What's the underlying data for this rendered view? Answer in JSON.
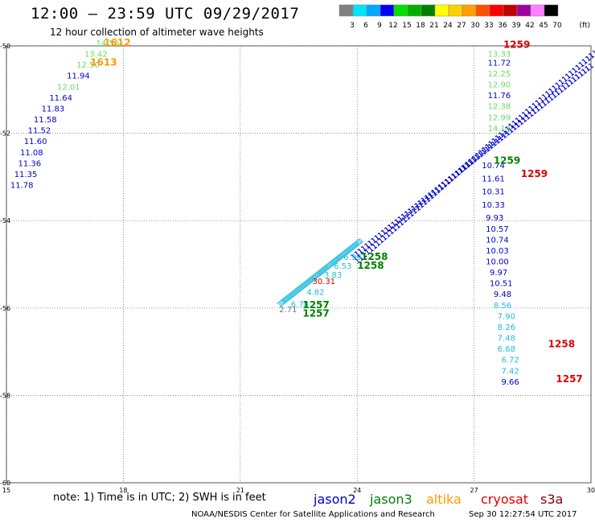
{
  "header": {
    "title": "12:00 – 23:59 UTC 09/29/2017",
    "subtitle": "12 hour collection of altimeter wave heights"
  },
  "colorbar": {
    "unit": "(ft)",
    "ticks": [
      "3",
      "6",
      "9",
      "12",
      "15",
      "18",
      "21",
      "24",
      "27",
      "30",
      "33",
      "36",
      "39",
      "42",
      "45",
      "70"
    ],
    "colors": [
      "#808080",
      "#00e5ff",
      "#00a8ff",
      "#0000ff",
      "#00e000",
      "#00b000",
      "#008000",
      "#ffff00",
      "#ffd000",
      "#ffa000",
      "#ff5000",
      "#ff0000",
      "#c00000",
      "#a000a0",
      "#ff80ff",
      "#000000"
    ]
  },
  "footer": {
    "note": "note: 1) Time is in UTC; 2) SWH is in feet",
    "credit": "NOAA/NESDIS Center for Satellite Applications and Research",
    "stamp": "Sep 30 12:27:54 UTC 2017"
  },
  "legend": [
    {
      "name": "jason2",
      "color": "#0000cc"
    },
    {
      "name": "jason3",
      "color": "#008000"
    },
    {
      "name": "altika",
      "color": "#ff9900"
    },
    {
      "name": "cryosat",
      "color": "#dd0000"
    },
    {
      "name": "s3a",
      "color": "#880000"
    }
  ],
  "chart_data": {
    "type": "scatter",
    "title": "12:00 – 23:59 UTC 09/29/2017",
    "xlim": [
      15,
      30
    ],
    "ylim": [
      -60,
      -50
    ],
    "x_ticks": [
      15,
      18,
      21,
      24,
      27,
      30
    ],
    "y_ticks": [
      -50,
      -52,
      -54,
      -56,
      -58,
      -60
    ],
    "grid": true,
    "value_labels": [
      {
        "x": 17.3,
        "y": -50.0,
        "text": "14.50",
        "color": "#66dd66"
      },
      {
        "x": 17.0,
        "y": -50.25,
        "text": "13.42",
        "color": "#66dd66"
      },
      {
        "x": 16.8,
        "y": -50.5,
        "text": "12.50",
        "color": "#66dd66"
      },
      {
        "x": 16.55,
        "y": -50.75,
        "text": "11.94",
        "color": "#0000cc"
      },
      {
        "x": 16.3,
        "y": -51.0,
        "text": "12.01",
        "color": "#66dd66"
      },
      {
        "x": 16.1,
        "y": -51.25,
        "text": "11.64",
        "color": "#0000cc"
      },
      {
        "x": 15.9,
        "y": -51.5,
        "text": "11.83",
        "color": "#0000cc"
      },
      {
        "x": 15.7,
        "y": -51.75,
        "text": "11.58",
        "color": "#0000cc"
      },
      {
        "x": 15.55,
        "y": -52.0,
        "text": "11.52",
        "color": "#0000cc"
      },
      {
        "x": 15.45,
        "y": -52.25,
        "text": "11.60",
        "color": "#0000cc"
      },
      {
        "x": 15.35,
        "y": -52.5,
        "text": "11.08",
        "color": "#0000cc"
      },
      {
        "x": 15.3,
        "y": -52.75,
        "text": "11.36",
        "color": "#0000cc"
      },
      {
        "x": 15.2,
        "y": -53.0,
        "text": "11.35",
        "color": "#0000cc"
      },
      {
        "x": 15.1,
        "y": -53.25,
        "text": "11.78",
        "color": "#0000cc"
      },
      {
        "x": 27.35,
        "y": -50.25,
        "text": "13.33",
        "color": "#66dd66"
      },
      {
        "x": 27.35,
        "y": -50.45,
        "text": "11.72",
        "color": "#0000cc"
      },
      {
        "x": 27.35,
        "y": -50.7,
        "text": "12.25",
        "color": "#66dd66"
      },
      {
        "x": 27.35,
        "y": -50.95,
        "text": "12.90",
        "color": "#66dd66"
      },
      {
        "x": 27.35,
        "y": -51.2,
        "text": "11.76",
        "color": "#0000cc"
      },
      {
        "x": 27.35,
        "y": -51.45,
        "text": "12.38",
        "color": "#66dd66"
      },
      {
        "x": 27.35,
        "y": -51.7,
        "text": "12.99",
        "color": "#66dd66"
      },
      {
        "x": 27.35,
        "y": -51.95,
        "text": "14.14",
        "color": "#66dd66"
      },
      {
        "x": 27.2,
        "y": -52.8,
        "text": "10.74",
        "color": "#0000cc"
      },
      {
        "x": 27.2,
        "y": -53.1,
        "text": "11.61",
        "color": "#0000cc"
      },
      {
        "x": 27.2,
        "y": -53.4,
        "text": "10.31",
        "color": "#0000cc"
      },
      {
        "x": 27.2,
        "y": -53.7,
        "text": "10.33",
        "color": "#0000cc"
      },
      {
        "x": 27.3,
        "y": -54.0,
        "text": "9.93",
        "color": "#0000cc"
      },
      {
        "x": 27.3,
        "y": -54.25,
        "text": "10.57",
        "color": "#0000cc"
      },
      {
        "x": 27.3,
        "y": -54.5,
        "text": "10.74",
        "color": "#0000cc"
      },
      {
        "x": 27.3,
        "y": -54.75,
        "text": "10.03",
        "color": "#0000cc"
      },
      {
        "x": 27.3,
        "y": -55.0,
        "text": "10.00",
        "color": "#0000cc"
      },
      {
        "x": 27.4,
        "y": -55.25,
        "text": "9.97",
        "color": "#0000cc"
      },
      {
        "x": 27.4,
        "y": -55.5,
        "text": "10.51",
        "color": "#0000cc"
      },
      {
        "x": 27.5,
        "y": -55.75,
        "text": "9.48",
        "color": "#0000cc"
      },
      {
        "x": 27.5,
        "y": -56.0,
        "text": "8.56",
        "color": "#22bbdd"
      },
      {
        "x": 27.6,
        "y": -56.25,
        "text": "7.90",
        "color": "#22bbdd"
      },
      {
        "x": 27.6,
        "y": -56.5,
        "text": "8.26",
        "color": "#22bbdd"
      },
      {
        "x": 27.6,
        "y": -56.75,
        "text": "7.48",
        "color": "#22bbdd"
      },
      {
        "x": 27.6,
        "y": -57.0,
        "text": "6.68",
        "color": "#22bbdd"
      },
      {
        "x": 27.7,
        "y": -57.25,
        "text": "6.72",
        "color": "#22bbdd"
      },
      {
        "x": 27.7,
        "y": -57.5,
        "text": "7.42",
        "color": "#22bbdd"
      },
      {
        "x": 27.7,
        "y": -57.75,
        "text": "9.66",
        "color": "#0000cc"
      },
      {
        "x": 22.0,
        "y": -56.1,
        "text": "2.71",
        "color": "#777777"
      },
      {
        "x": 22.3,
        "y": -55.98,
        "text": "6.78",
        "color": "#22bbdd"
      },
      {
        "x": 22.7,
        "y": -55.7,
        "text": "4.82",
        "color": "#22bbdd"
      },
      {
        "x": 22.85,
        "y": -55.45,
        "text": "30.31",
        "color": "#cc0000"
      },
      {
        "x": 23.15,
        "y": -55.3,
        "text": "3.83",
        "color": "#22bbdd"
      },
      {
        "x": 23.4,
        "y": -55.1,
        "text": "6.53",
        "color": "#22bbdd"
      },
      {
        "x": 23.65,
        "y": -54.9,
        "text": "6.99",
        "color": "#22bbdd"
      }
    ],
    "pass_labels": [
      {
        "x": 17.5,
        "y": -50.0,
        "text": "1612",
        "color": "#ff9900"
      },
      {
        "x": 17.15,
        "y": -50.45,
        "text": "1613",
        "color": "#ff9900"
      },
      {
        "x": 27.75,
        "y": -50.05,
        "text": "1259",
        "color": "#dd0000"
      },
      {
        "x": 27.5,
        "y": -52.7,
        "text": "1259",
        "color": "#008000"
      },
      {
        "x": 28.2,
        "y": -53.0,
        "text": "1259",
        "color": "#dd0000"
      },
      {
        "x": 24.1,
        "y": -54.9,
        "text": "1258",
        "color": "#008000"
      },
      {
        "x": 24.0,
        "y": -55.1,
        "text": "1258",
        "color": "#008000"
      },
      {
        "x": 28.9,
        "y": -56.9,
        "text": "1258",
        "color": "#dd0000"
      },
      {
        "x": 22.6,
        "y": -56.0,
        "text": "1257",
        "color": "#008000"
      },
      {
        "x": 22.6,
        "y": -56.2,
        "text": "1257",
        "color": "#008000"
      },
      {
        "x": 29.1,
        "y": -57.7,
        "text": "1257",
        "color": "#dd0000"
      }
    ],
    "tracks": [
      {
        "name": "jason2",
        "color": "#0000cc",
        "x0": 24.0,
        "y0": -55.0,
        "x1": 30.0,
        "y1": -50.3
      },
      {
        "name": "jason2",
        "color": "#0000cc",
        "x0": 23.9,
        "y0": -54.9,
        "x1": 29.9,
        "y1": -50.6
      },
      {
        "name": "jason3",
        "color": "#22bbdd",
        "x0": 22.0,
        "y0": -56.0,
        "x1": 24.0,
        "y1": -54.6
      }
    ]
  }
}
